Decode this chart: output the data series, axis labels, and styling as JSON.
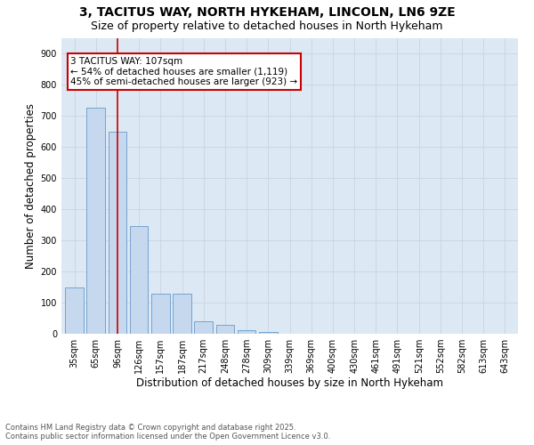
{
  "title1": "3, TACITUS WAY, NORTH HYKEHAM, LINCOLN, LN6 9ZE",
  "title2": "Size of property relative to detached houses in North Hykeham",
  "xlabel": "Distribution of detached houses by size in North Hykeham",
  "ylabel": "Number of detached properties",
  "categories": [
    "35sqm",
    "65sqm",
    "96sqm",
    "126sqm",
    "157sqm",
    "187sqm",
    "217sqm",
    "248sqm",
    "278sqm",
    "309sqm",
    "339sqm",
    "369sqm",
    "400sqm",
    "430sqm",
    "461sqm",
    "491sqm",
    "521sqm",
    "552sqm",
    "582sqm",
    "613sqm",
    "643sqm"
  ],
  "values": [
    150,
    725,
    650,
    345,
    130,
    130,
    40,
    30,
    12,
    5,
    0,
    0,
    0,
    0,
    0,
    0,
    0,
    0,
    0,
    0,
    0
  ],
  "bar_color": "#c5d8ee",
  "bar_edge_color": "#6699cc",
  "red_line_x": 2,
  "annotation_line1": "3 TACITUS WAY: 107sqm",
  "annotation_line2": "← 54% of detached houses are smaller (1,119)",
  "annotation_line3": "45% of semi-detached houses are larger (923) →",
  "annotation_box_color": "#ffffff",
  "annotation_box_edge": "#cc0000",
  "red_line_color": "#cc0000",
  "ylim": [
    0,
    950
  ],
  "yticks": [
    0,
    100,
    200,
    300,
    400,
    500,
    600,
    700,
    800,
    900
  ],
  "grid_color": "#c8d4e0",
  "bg_color": "#dce8f4",
  "footnote": "Contains HM Land Registry data © Crown copyright and database right 2025.\nContains public sector information licensed under the Open Government Licence v3.0.",
  "title_fontsize": 10,
  "subtitle_fontsize": 9,
  "tick_fontsize": 7,
  "label_fontsize": 8.5,
  "annot_fontsize": 7.5
}
